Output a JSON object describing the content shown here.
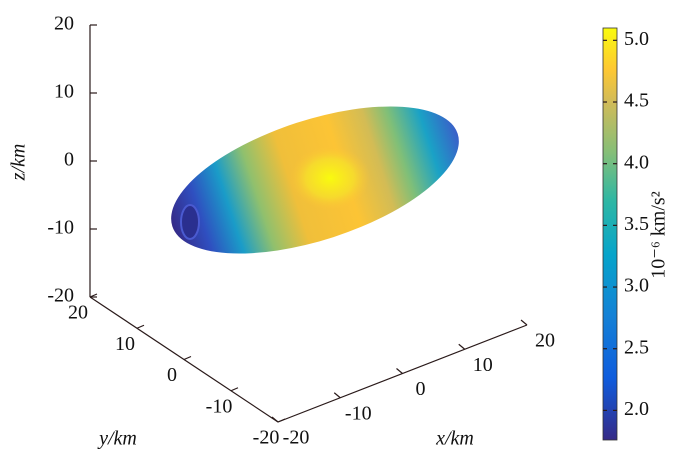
{
  "chart_data": {
    "type": "surface3d",
    "xlabel": "x/km",
    "ylabel": "y/km",
    "zlabel": "z/km",
    "xlim": [
      -20,
      20
    ],
    "xticks": [
      -20,
      -10,
      0,
      10,
      20
    ],
    "ylim": [
      -20,
      20
    ],
    "yticks": [
      20,
      10,
      0,
      -10,
      -20
    ],
    "zlim": [
      -20,
      20
    ],
    "zticks": [
      20,
      10,
      0,
      -10,
      -20
    ],
    "colorbar_label": "10⁻⁶ km/s²",
    "clim": [
      1.76,
      5.1
    ],
    "cticks": [
      {
        "value": 2,
        "label": "2.0"
      },
      {
        "value": 2.5,
        "label": "2.5"
      },
      {
        "value": 3,
        "label": "3.0"
      },
      {
        "value": 3.5,
        "label": "3.5"
      },
      {
        "value": 4,
        "label": "4.0"
      },
      {
        "value": 4.5,
        "label": "4.5"
      },
      {
        "value": 5,
        "label": "5.0"
      }
    ]
  }
}
